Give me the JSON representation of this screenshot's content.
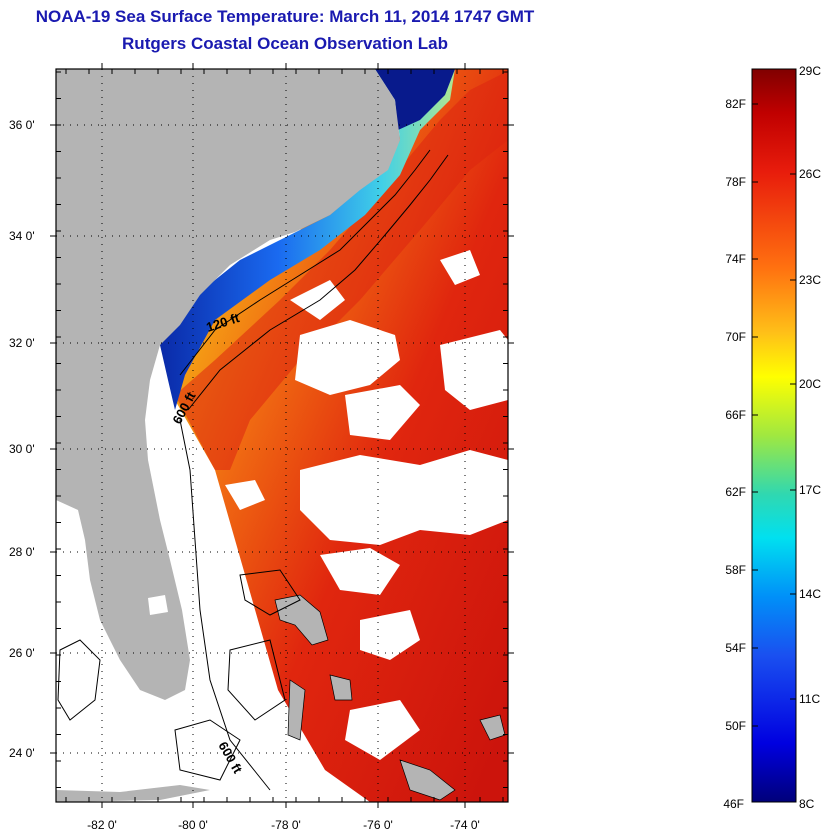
{
  "header": {
    "title": "NOAA-19 Sea Surface Temperature:  March 11, 2014 1747 GMT",
    "subtitle": "Rutgers Coastal Ocean Observation Lab"
  },
  "map": {
    "lat_labels": [
      "36 0'",
      "34 0'",
      "32 0'",
      "30 0'",
      "28 0'",
      "26 0'",
      "24 0'"
    ],
    "lon_labels": [
      "-82 0'",
      "-80 0'",
      "-78 0'",
      "-76 0'",
      "-74 0'"
    ],
    "contour_labels": [
      "120 ft",
      "600 ft",
      "600 ft"
    ],
    "colors": {
      "land": "#b4b4b4",
      "no_data": "#ffffff",
      "warm_water": "#e02010",
      "cold_water": "#0a2aa8"
    }
  },
  "colorbar": {
    "fahrenheit_labels": [
      "82F",
      "78F",
      "74F",
      "70F",
      "66F",
      "62F",
      "58F",
      "54F",
      "50F",
      "46F"
    ],
    "celsius_labels": [
      "29C",
      "26C",
      "23C",
      "20C",
      "17C",
      "14C",
      "11C",
      "8C"
    ],
    "scale": "jet colormap, dark red (warm) at top to dark blue (cold) at bottom"
  }
}
